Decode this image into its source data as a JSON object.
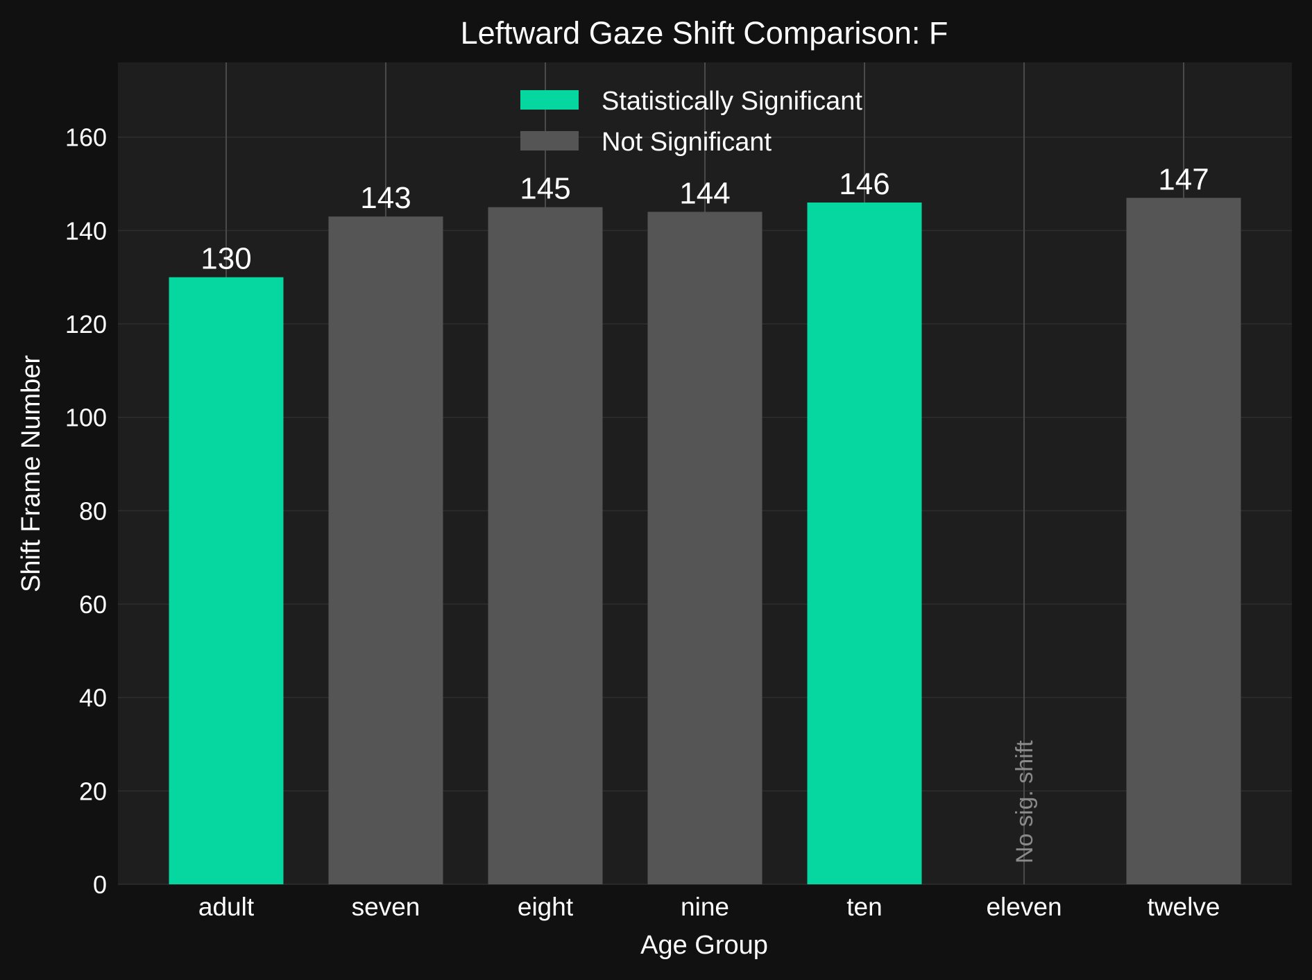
{
  "chart_data": {
    "type": "bar",
    "title": "Leftward Gaze Shift Comparison: F",
    "xlabel": "Age Group",
    "ylabel": "Shift Frame Number",
    "categories": [
      "adult",
      "seven",
      "eight",
      "nine",
      "ten",
      "eleven",
      "twelve"
    ],
    "values": [
      130,
      143,
      145,
      144,
      146,
      null,
      147
    ],
    "value_labels": [
      "130",
      "143",
      "145",
      "144",
      "146",
      "",
      "147"
    ],
    "significant": [
      true,
      false,
      false,
      false,
      true,
      null,
      false
    ],
    "ylim": [
      0,
      176
    ],
    "yticks": [
      0,
      20,
      40,
      60,
      80,
      100,
      120,
      140,
      160
    ],
    "grid": true,
    "legend": {
      "placement": "top-center",
      "entries": [
        {
          "label": "Statistically Significant",
          "color": "#06d6a0"
        },
        {
          "label": "Not Significant",
          "color": "#555555"
        }
      ]
    },
    "annotations": [
      {
        "category": "eleven",
        "text": "No sig. shift"
      }
    ]
  },
  "colors": {
    "background": "#111111",
    "plot_area": "#1e1e1e",
    "significant": "#06d6a0",
    "not_significant": "#555555",
    "text": "#ffffff",
    "annotation": "#8a8a8a",
    "grid": "#2e2e2e",
    "category_line": "#4a4a4a"
  }
}
